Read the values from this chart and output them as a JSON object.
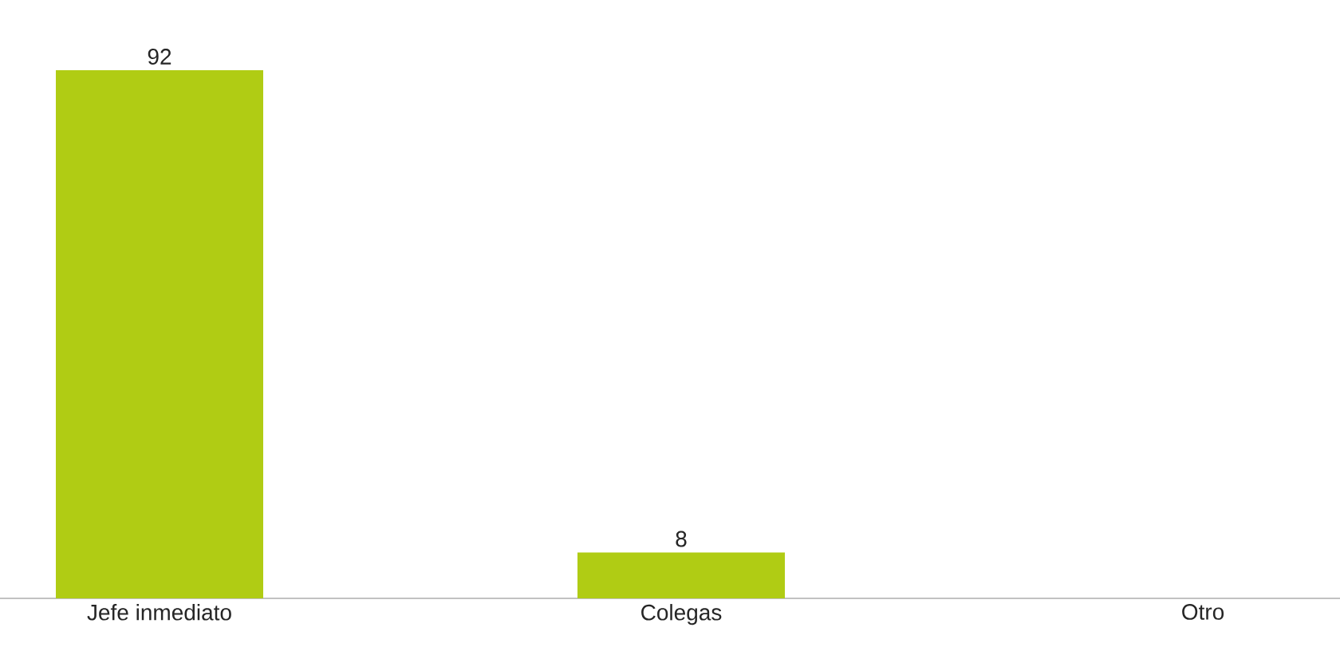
{
  "chart_data": {
    "type": "bar",
    "categories": [
      "Jefe inmediato",
      "Colegas",
      "Otro"
    ],
    "values": [
      92,
      8,
      0
    ],
    "value_labels": [
      "92",
      "8",
      null
    ],
    "color": "#b0cc14"
  }
}
